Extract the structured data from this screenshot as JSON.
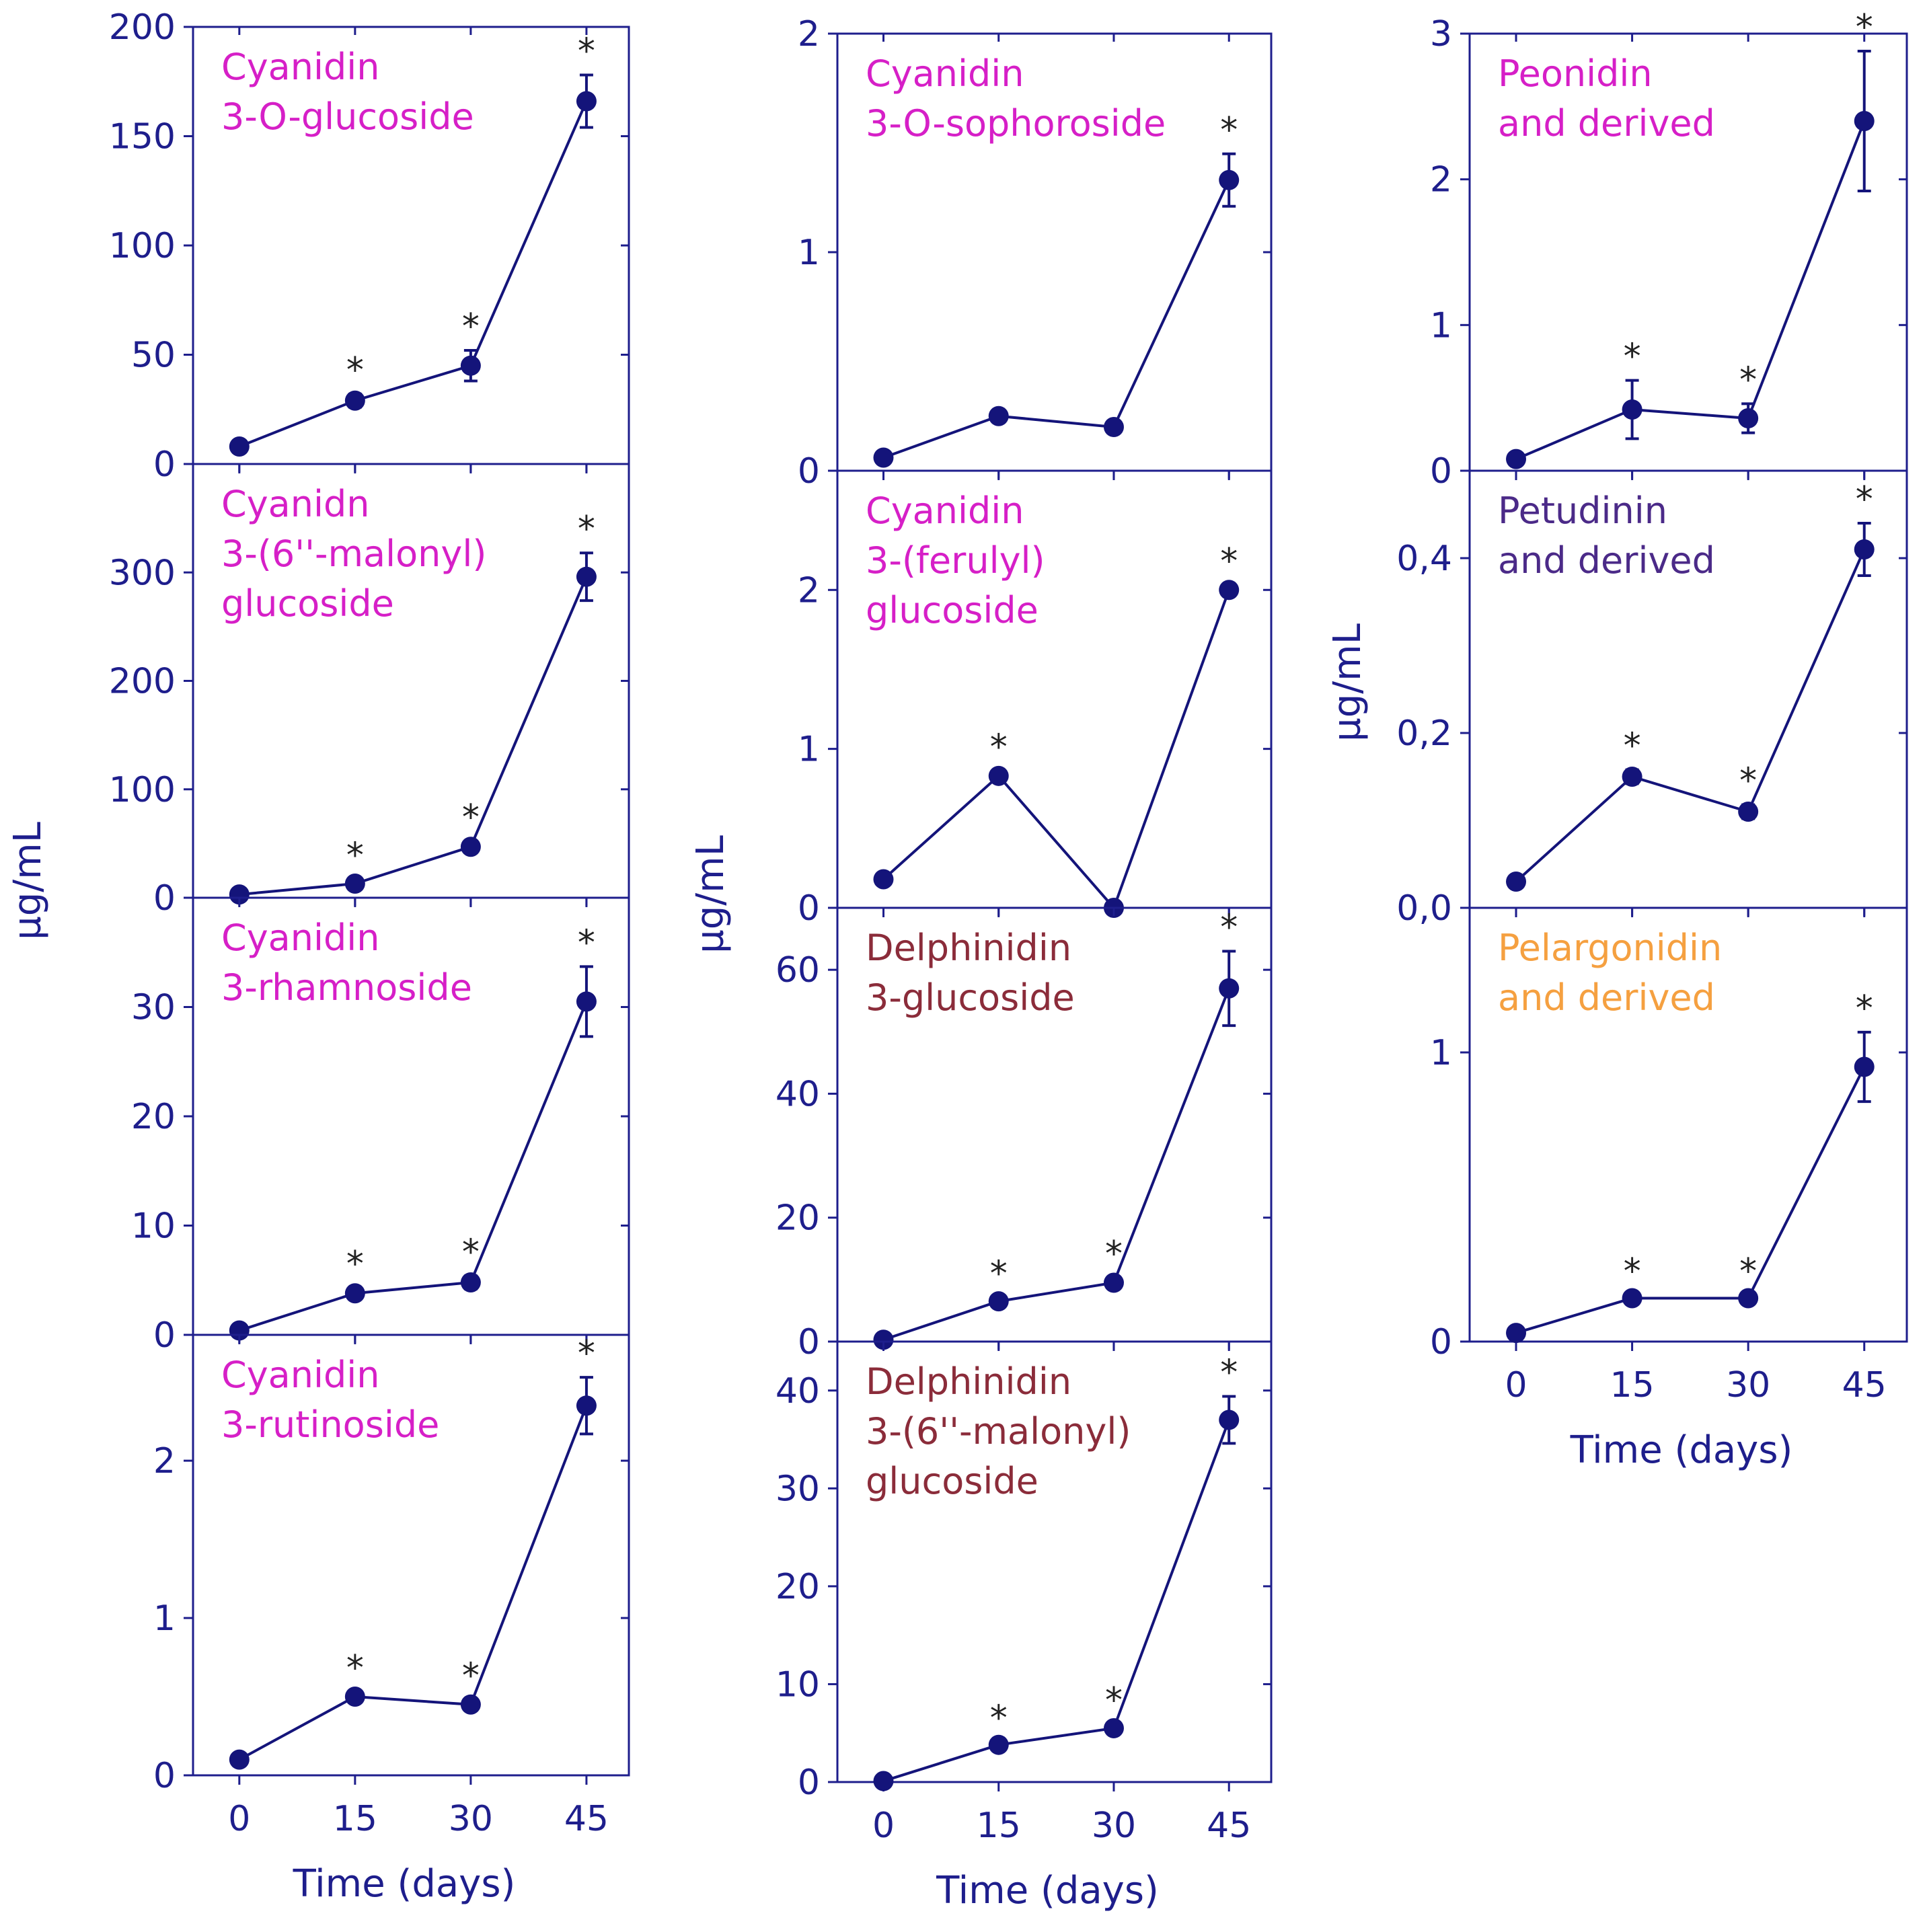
{
  "colors": {
    "axis": "#1e1e8c",
    "series": "#14147a",
    "star": "#222222"
  },
  "ylabels": [
    "µg/mL",
    "µg/mL",
    "µg/mL"
  ],
  "chart_data": [
    {
      "id": "c3og",
      "type": "line",
      "title_lines": [
        "Cyanidin",
        "3-O-glucoside"
      ],
      "title_color": "#d61fc7",
      "x": [
        0,
        15,
        30,
        45
      ],
      "y": [
        8,
        29,
        45,
        166
      ],
      "err": [
        2,
        3,
        7,
        12
      ],
      "sig": [
        false,
        true,
        true,
        true
      ],
      "ylim": [
        0,
        200
      ],
      "yticks": [
        0,
        50,
        100,
        150,
        200
      ],
      "yticklabels": [
        "0",
        "50",
        "100",
        "150",
        "200"
      ],
      "xticklabels": [],
      "xlabel": ""
    },
    {
      "id": "c3mg",
      "type": "line",
      "title_lines": [
        "Cyanidn",
        "3-(6''-malonyl)",
        "glucoside"
      ],
      "title_color": "#d61fc7",
      "x": [
        0,
        15,
        30,
        45
      ],
      "y": [
        3,
        13,
        47,
        296
      ],
      "err": [
        2,
        4,
        5,
        22
      ],
      "sig": [
        false,
        true,
        true,
        true
      ],
      "ylim": [
        0,
        400
      ],
      "yticks": [
        0,
        100,
        200,
        300
      ],
      "yticklabels": [
        "0",
        "100",
        "200",
        "300"
      ],
      "xticklabels": [],
      "xlabel": ""
    },
    {
      "id": "c3rh",
      "type": "line",
      "title_lines": [
        "Cyanidin",
        "3-rhamnoside"
      ],
      "title_color": "#d61fc7",
      "x": [
        0,
        15,
        30,
        45
      ],
      "y": [
        0.4,
        3.8,
        4.8,
        30.5
      ],
      "err": [
        0.3,
        0.5,
        0.6,
        3.2
      ],
      "sig": [
        false,
        true,
        true,
        true
      ],
      "ylim": [
        0,
        40
      ],
      "yticks": [
        0,
        10,
        20,
        30
      ],
      "yticklabels": [
        "0",
        "10",
        "20",
        "30"
      ],
      "xticklabels": [],
      "xlabel": ""
    },
    {
      "id": "c3ru",
      "type": "line",
      "title_lines": [
        "Cyanidin",
        "3-rutinoside"
      ],
      "title_color": "#d61fc7",
      "x": [
        0,
        15,
        30,
        45
      ],
      "y": [
        0.1,
        0.5,
        0.45,
        2.35
      ],
      "err": [
        0.02,
        0.03,
        0.03,
        0.18
      ],
      "sig": [
        false,
        true,
        true,
        true
      ],
      "ylim": [
        0,
        2.8
      ],
      "yticks": [
        0,
        1,
        2
      ],
      "yticklabels": [
        "0",
        "1",
        "2"
      ],
      "xticklabels": [
        "0",
        "15",
        "30",
        "45"
      ],
      "xlabel": "Time (days)"
    },
    {
      "id": "c3so",
      "type": "line",
      "title_lines": [
        "Cyanidin",
        "3-O-sophoroside"
      ],
      "title_color": "#d61fc7",
      "x": [
        0,
        15,
        30,
        45
      ],
      "y": [
        0.06,
        0.25,
        0.2,
        1.33
      ],
      "err": [
        0.01,
        0.02,
        0.02,
        0.12
      ],
      "sig": [
        false,
        false,
        false,
        true
      ],
      "ylim": [
        0,
        2
      ],
      "yticks": [
        0,
        1,
        2
      ],
      "yticklabels": [
        "0",
        "1",
        "2"
      ],
      "xticklabels": [],
      "xlabel": ""
    },
    {
      "id": "c3fg",
      "type": "line",
      "title_lines": [
        "Cyanidin",
        "3-(ferulyl)",
        "glucoside"
      ],
      "title_color": "#d61fc7",
      "x": [
        0,
        15,
        30,
        45
      ],
      "y": [
        0.18,
        0.83,
        0.0,
        2.0
      ],
      "err": [
        0.02,
        0.03,
        0.0,
        0.03
      ],
      "sig": [
        false,
        true,
        false,
        true
      ],
      "ylim": [
        0,
        2.75
      ],
      "yticks": [
        0,
        1,
        2
      ],
      "yticklabels": [
        "0",
        "1",
        "2"
      ],
      "xticklabels": [],
      "xlabel": ""
    },
    {
      "id": "d3g",
      "type": "line",
      "title_lines": [
        "Delphinidin",
        "3-glucoside"
      ],
      "title_color": "#8b2c3a",
      "x": [
        0,
        15,
        30,
        45
      ],
      "y": [
        0.3,
        6.5,
        9.5,
        57
      ],
      "err": [
        0.2,
        0.6,
        0.8,
        6
      ],
      "sig": [
        false,
        true,
        true,
        true
      ],
      "ylim": [
        0,
        70
      ],
      "yticks": [
        0,
        20,
        40,
        60
      ],
      "yticklabels": [
        "0",
        "20",
        "40",
        "60"
      ],
      "xticklabels": [],
      "xlabel": ""
    },
    {
      "id": "d3mg",
      "type": "line",
      "title_lines": [
        "Delphinidin",
        "3-(6''-malonyl)",
        "glucoside"
      ],
      "title_color": "#8b2c3a",
      "x": [
        0,
        15,
        30,
        45
      ],
      "y": [
        0.1,
        3.8,
        5.5,
        37
      ],
      "err": [
        0.1,
        0.3,
        0.4,
        2.4
      ],
      "sig": [
        false,
        true,
        true,
        true
      ],
      "ylim": [
        0,
        45
      ],
      "yticks": [
        0,
        10,
        20,
        30,
        40
      ],
      "yticklabels": [
        "0",
        "10",
        "20",
        "30",
        "40"
      ],
      "xticklabels": [
        "0",
        "15",
        "30",
        "45"
      ],
      "xlabel": "Time (days)"
    },
    {
      "id": "peo",
      "type": "line",
      "title_lines": [
        "Peonidin",
        "and derived"
      ],
      "title_color": "#d61fc7",
      "x": [
        0,
        15,
        30,
        45
      ],
      "y": [
        0.08,
        0.42,
        0.36,
        2.4
      ],
      "err": [
        0.02,
        0.2,
        0.1,
        0.48
      ],
      "sig": [
        false,
        true,
        true,
        true
      ],
      "ylim": [
        0,
        3
      ],
      "yticks": [
        0,
        1,
        2,
        3
      ],
      "yticklabels": [
        "0",
        "1",
        "2",
        "3"
      ],
      "xticklabels": [],
      "xlabel": ""
    },
    {
      "id": "pet",
      "type": "line",
      "title_lines": [
        "Petudinin",
        "and derived"
      ],
      "title_color": "#4b2a88",
      "x": [
        0,
        15,
        30,
        45
      ],
      "y": [
        0.03,
        0.15,
        0.11,
        0.41
      ],
      "err": [
        0.003,
        0.008,
        0.008,
        0.03
      ],
      "sig": [
        false,
        true,
        true,
        true
      ],
      "ylim": [
        0,
        0.5
      ],
      "yticks": [
        0,
        0.2,
        0.4
      ],
      "yticklabels": [
        "0,0",
        "0,2",
        "0,4"
      ],
      "xticklabels": [],
      "xlabel": ""
    },
    {
      "id": "pel",
      "type": "line",
      "title_lines": [
        "Pelargonidin",
        "and derived"
      ],
      "title_color": "#f5a040",
      "x": [
        0,
        15,
        30,
        45
      ],
      "y": [
        0.03,
        0.15,
        0.15,
        0.95
      ],
      "err": [
        0.005,
        0.01,
        0.01,
        0.12
      ],
      "sig": [
        false,
        true,
        true,
        true
      ],
      "ylim": [
        0,
        1.5
      ],
      "yticks": [
        0,
        1
      ],
      "yticklabels": [
        "0",
        "1"
      ],
      "xticklabels": [
        "0",
        "15",
        "30",
        "45"
      ],
      "xlabel": "Time (days)"
    }
  ]
}
